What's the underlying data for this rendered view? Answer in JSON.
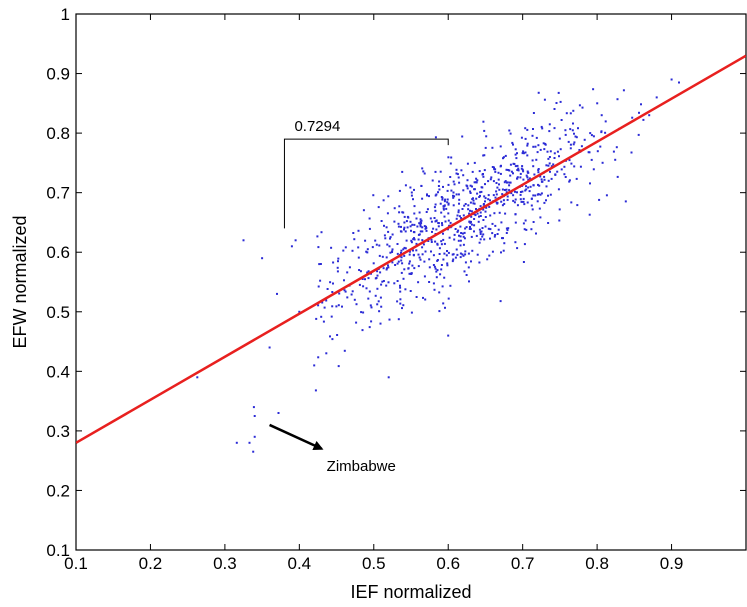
{
  "chart_data": {
    "type": "scatter",
    "title": "",
    "xlabel": "IEF normalized",
    "ylabel": "EFW normalized",
    "xlim": [
      0.1,
      1.0
    ],
    "ylim": [
      0.1,
      1.0
    ],
    "xticks": [
      "0.1",
      "0.2",
      "0.3",
      "0.4",
      "0.5",
      "0.6",
      "0.7",
      "0.8",
      "0.9"
    ],
    "yticks": [
      "0.1",
      "0.2",
      "0.3",
      "0.4",
      "0.5",
      "0.6",
      "0.7",
      "0.8",
      "0.9",
      "1"
    ],
    "grid": false,
    "point_color": "#2b2bd6",
    "fit_line": {
      "color": "#e8201f",
      "x": [
        0.1,
        1.0
      ],
      "y": [
        0.28,
        0.93
      ]
    },
    "bracket": {
      "label": "0.7294",
      "x_start": 0.38,
      "x_end": 0.6,
      "y_top": 0.79,
      "y_bottom": 0.64
    },
    "annotation": {
      "text": "Zimbabwe",
      "arrow_from": [
        0.36,
        0.31
      ],
      "arrow_to": [
        0.43,
        0.27
      ]
    },
    "n_points": 900,
    "outliers": [
      {
        "x": 0.263,
        "y": 0.39
      },
      {
        "x": 0.316,
        "y": 0.28
      },
      {
        "x": 0.333,
        "y": 0.28
      },
      {
        "x": 0.338,
        "y": 0.265
      },
      {
        "x": 0.339,
        "y": 0.34
      },
      {
        "x": 0.34,
        "y": 0.325
      },
      {
        "x": 0.34,
        "y": 0.29
      },
      {
        "x": 0.372,
        "y": 0.33
      },
      {
        "x": 0.325,
        "y": 0.62
      },
      {
        "x": 0.35,
        "y": 0.59
      },
      {
        "x": 0.36,
        "y": 0.44
      },
      {
        "x": 0.37,
        "y": 0.53
      },
      {
        "x": 0.39,
        "y": 0.61
      },
      {
        "x": 0.395,
        "y": 0.62
      },
      {
        "x": 0.4,
        "y": 0.5
      },
      {
        "x": 0.42,
        "y": 0.41
      },
      {
        "x": 0.52,
        "y": 0.39
      },
      {
        "x": 0.6,
        "y": 0.46
      },
      {
        "x": 0.88,
        "y": 0.86
      },
      {
        "x": 0.9,
        "y": 0.89
      },
      {
        "x": 0.91,
        "y": 0.885
      },
      {
        "x": 0.87,
        "y": 0.83
      }
    ]
  }
}
